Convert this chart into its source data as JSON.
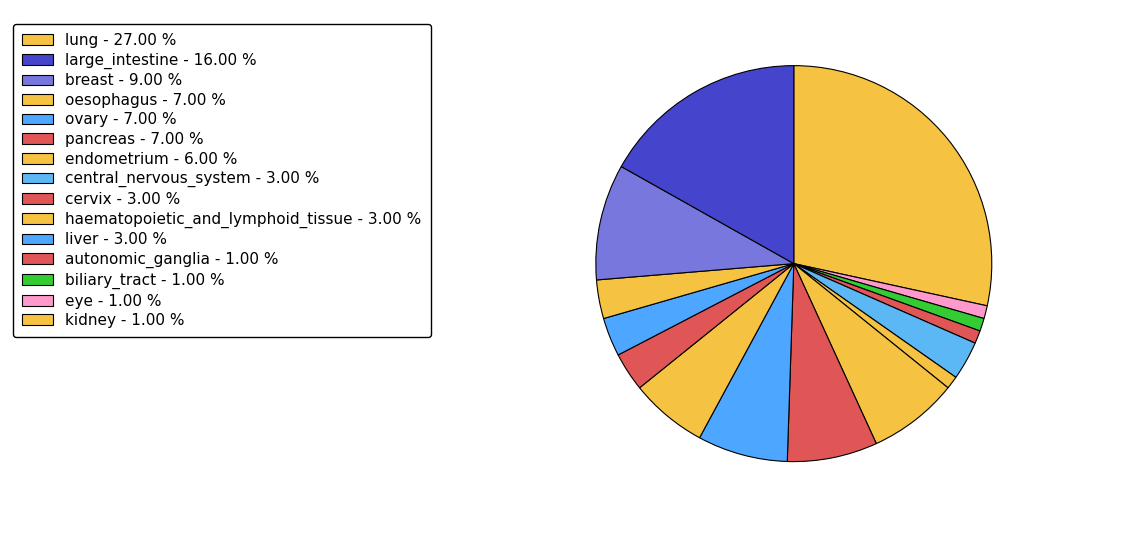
{
  "labels": [
    "lung - 27.00 %",
    "large_intestine - 16.00 %",
    "breast - 9.00 %",
    "oesophagus - 7.00 %",
    "ovary - 7.00 %",
    "pancreas - 7.00 %",
    "endometrium - 6.00 %",
    "central_nervous_system - 3.00 %",
    "cervix - 3.00 %",
    "haematopoietic_and_lymphoid_tissue - 3.00 %",
    "liver - 3.00 %",
    "autonomic_ganglia - 1.00 %",
    "biliary_tract - 1.00 %",
    "eye - 1.00 %",
    "kidney - 1.00 %"
  ],
  "values": [
    27,
    16,
    9,
    7,
    7,
    7,
    6,
    3,
    3,
    3,
    3,
    1,
    1,
    1,
    1
  ],
  "colors": [
    "#F5C242",
    "#4444CC",
    "#7777DD",
    "#F5C242",
    "#4DA6FF",
    "#E05555",
    "#F5C242",
    "#5BB8F5",
    "#E05555",
    "#F5C242",
    "#4DA6FF",
    "#E05555",
    "#33CC33",
    "#FF99CC",
    "#F5C242"
  ],
  "pie_order": [
    0,
    13,
    12,
    11,
    7,
    14,
    3,
    5,
    4,
    6,
    8,
    10,
    9,
    2,
    1
  ],
  "startangle": 90,
  "counterclock": false,
  "figsize": [
    11.34,
    5.38
  ],
  "dpi": 100,
  "background_color": "#ffffff",
  "legend_fontsize": 11
}
